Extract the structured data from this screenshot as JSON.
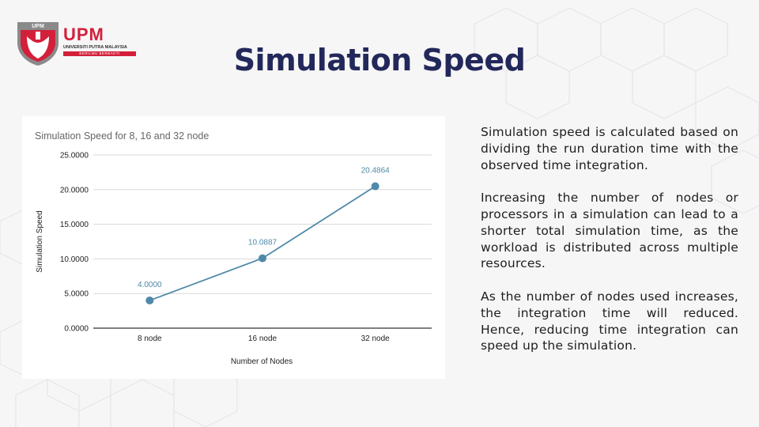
{
  "slide": {
    "title": "Simulation Speed",
    "logo": {
      "wordmark": "UPM",
      "line1": "UNIVERSITI PUTRA MALAYSIA",
      "line2": "BERILMU BERBAKTI",
      "shield_text": "UPM",
      "brand_color": "#d3203a"
    },
    "paragraphs": [
      "Simulation speed is calculated based on dividing the run duration time with the observed time integration.",
      "Increasing the number of nodes or processors in a simulation can lead to a shorter total simulation time, as the workload is distributed across multiple resources.",
      "As the number of nodes used increases, the integration time will reduced. Hence, reducing time integration can speed up the simulation."
    ]
  },
  "chart_data": {
    "type": "line",
    "title": "Simulation Speed for 8, 16 and 32 node",
    "xlabel": "Number of Nodes",
    "ylabel": "Simulation Speed",
    "categories": [
      "8 node",
      "16 node",
      "32 node"
    ],
    "values": [
      4.0,
      10.0887,
      20.4864
    ],
    "data_labels": [
      "4.0000",
      "10.0887",
      "20.4864"
    ],
    "yticks": [
      "0.0000",
      "5.0000",
      "10.0000",
      "15.0000",
      "20.0000",
      "25.0000"
    ],
    "ylim": [
      0,
      25
    ],
    "grid": true,
    "legend": "none",
    "color": "#4f89a9"
  }
}
